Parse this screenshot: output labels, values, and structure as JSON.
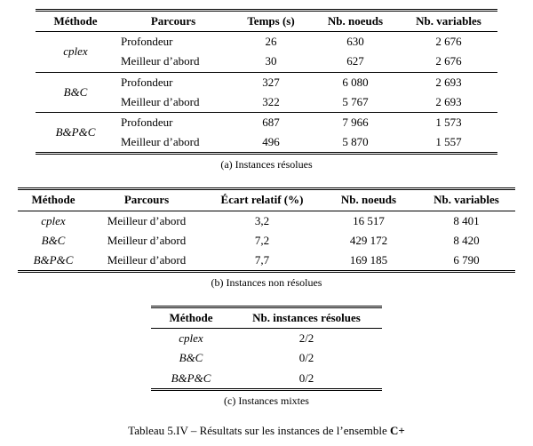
{
  "colors": {
    "text": "#000000",
    "background": "#ffffff",
    "rule": "#000000"
  },
  "typography": {
    "body_fontsize_pt": 10,
    "caption_fontsize_pt": 9,
    "family": "Times New Roman"
  },
  "tableA": {
    "headers": {
      "method": "Méthode",
      "parcours": "Parcours",
      "temps": "Temps (s)",
      "noeuds": "Nb. noeuds",
      "vars": "Nb. variables"
    },
    "groups": [
      {
        "method": "cplex",
        "rows": [
          {
            "parcours": "Profondeur",
            "temps": "26",
            "noeuds": "630",
            "vars": "2 676"
          },
          {
            "parcours": "Meilleur d’abord",
            "temps": "30",
            "noeuds": "627",
            "vars": "2 676"
          }
        ]
      },
      {
        "method": "B&C",
        "rows": [
          {
            "parcours": "Profondeur",
            "temps": "327",
            "noeuds": "6 080",
            "vars": "2 693"
          },
          {
            "parcours": "Meilleur d’abord",
            "temps": "322",
            "noeuds": "5 767",
            "vars": "2 693"
          }
        ]
      },
      {
        "method": "B&P&C",
        "rows": [
          {
            "parcours": "Profondeur",
            "temps": "687",
            "noeuds": "7 966",
            "vars": "1 573"
          },
          {
            "parcours": "Meilleur d’abord",
            "temps": "496",
            "noeuds": "5 870",
            "vars": "1 557"
          }
        ]
      }
    ],
    "caption": "(a) Instances résolues"
  },
  "tableB": {
    "headers": {
      "method": "Méthode",
      "parcours": "Parcours",
      "ecart": "Écart relatif (%)",
      "noeuds": "Nb. noeuds",
      "vars": "Nb. variables"
    },
    "rows": [
      {
        "method": "cplex",
        "parcours": "Meilleur d’abord",
        "ecart": "3,2",
        "noeuds": "16 517",
        "vars": "8 401"
      },
      {
        "method": "B&C",
        "parcours": "Meilleur d’abord",
        "ecart": "7,2",
        "noeuds": "429 172",
        "vars": "8 420"
      },
      {
        "method": "B&P&C",
        "parcours": "Meilleur d’abord",
        "ecart": "7,7",
        "noeuds": "169 185",
        "vars": "6 790"
      }
    ],
    "caption": "(b) Instances non résolues"
  },
  "tableC": {
    "headers": {
      "method": "Méthode",
      "count": "Nb. instances résolues"
    },
    "rows": [
      {
        "method": "cplex",
        "count": "2/2"
      },
      {
        "method": "B&C",
        "count": "0/2"
      },
      {
        "method": "B&P&C",
        "count": "0/2"
      }
    ],
    "caption": "(c) Instances mixtes"
  },
  "finalCaption": {
    "prefix": "Tableau 5.IV – Résultats sur les instances de l’ensemble ",
    "bold": "C+"
  }
}
